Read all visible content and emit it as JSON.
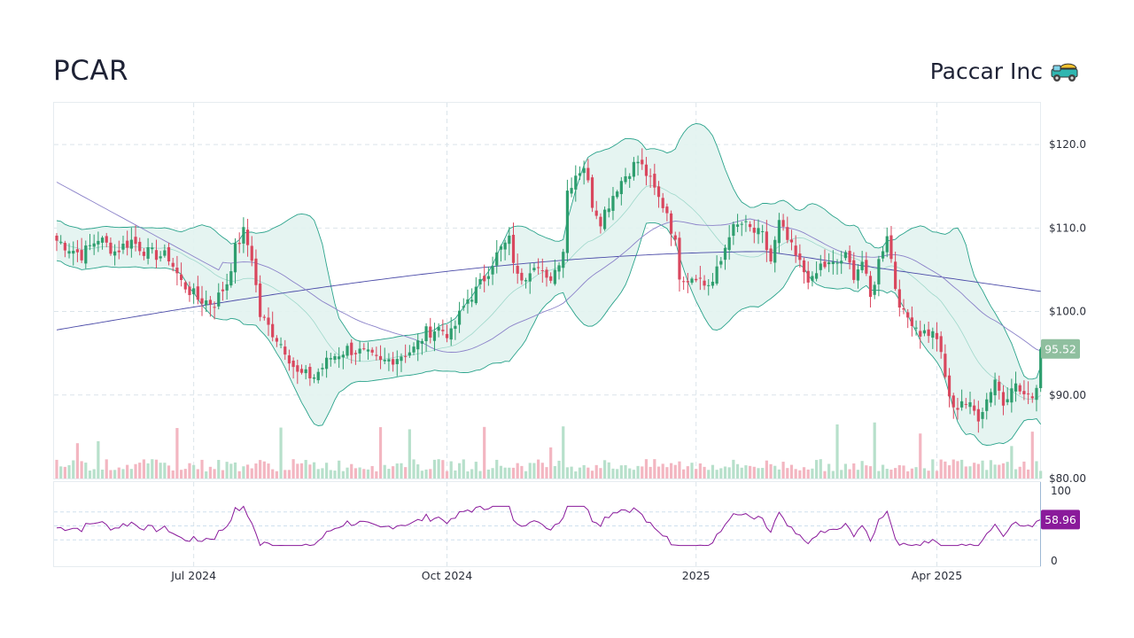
{
  "header": {
    "ticker": "PCAR",
    "company": "Paccar Inc",
    "company_icon": "truck-icon"
  },
  "chart_data": {
    "type": "candlestick",
    "price_ylim": [
      80,
      125
    ],
    "price_ticks": [
      {
        "value": 120,
        "label": "$120.0"
      },
      {
        "value": 110,
        "label": "$110.0"
      },
      {
        "value": 100,
        "label": "$100.0"
      },
      {
        "value": 90,
        "label": "$90.00"
      },
      {
        "value": 80,
        "label": "$80.00"
      }
    ],
    "x_ticks": [
      {
        "i": 33,
        "label": "Jul 2024"
      },
      {
        "i": 94,
        "label": "Oct 2024"
      },
      {
        "i": 154,
        "label": "2025"
      },
      {
        "i": 212,
        "label": "Apr 2025"
      }
    ],
    "close_anchors": [
      [
        0,
        108.5
      ],
      [
        6,
        106.8
      ],
      [
        10,
        108.8
      ],
      [
        14,
        107.2
      ],
      [
        18,
        108.5
      ],
      [
        22,
        107.0
      ],
      [
        27,
        106.5
      ],
      [
        30,
        103.5
      ],
      [
        34,
        101.5
      ],
      [
        38,
        101.0
      ],
      [
        41,
        103.5
      ],
      [
        43,
        107.5
      ],
      [
        45,
        109.5
      ],
      [
        47,
        106.5
      ],
      [
        49,
        99.5
      ],
      [
        52,
        97.5
      ],
      [
        55,
        95.5
      ],
      [
        58,
        92.5
      ],
      [
        62,
        92.2
      ],
      [
        66,
        94.5
      ],
      [
        70,
        95.5
      ],
      [
        74,
        95.0
      ],
      [
        78,
        93.8
      ],
      [
        82,
        94.6
      ],
      [
        86,
        95.5
      ],
      [
        89,
        97.5
      ],
      [
        92,
        98.0
      ],
      [
        95,
        97.2
      ],
      [
        97,
        99.5
      ],
      [
        99,
        101.5
      ],
      [
        101,
        102.5
      ],
      [
        103,
        104.0
      ],
      [
        105,
        106.0
      ],
      [
        107,
        107.5
      ],
      [
        109,
        108.5
      ],
      [
        111,
        104.0
      ],
      [
        113,
        104.5
      ],
      [
        115,
        106.0
      ],
      [
        118,
        103.5
      ],
      [
        120,
        105.0
      ],
      [
        122,
        107.5
      ],
      [
        123,
        114.5
      ],
      [
        125,
        116.5
      ],
      [
        127,
        117.5
      ],
      [
        129,
        113.0
      ],
      [
        131,
        111.0
      ],
      [
        133,
        113.0
      ],
      [
        135,
        115.0
      ],
      [
        138,
        117.0
      ],
      [
        140,
        118.0
      ],
      [
        142,
        116.5
      ],
      [
        145,
        113.5
      ],
      [
        147,
        112.0
      ],
      [
        149,
        108.0
      ],
      [
        150,
        104.5
      ],
      [
        152,
        104.0
      ],
      [
        154,
        104.5
      ],
      [
        156,
        103.2
      ],
      [
        158,
        103.5
      ],
      [
        160,
        106.0
      ],
      [
        162,
        109.5
      ],
      [
        165,
        110.5
      ],
      [
        168,
        109.5
      ],
      [
        170,
        109.0
      ],
      [
        172,
        106.0
      ],
      [
        174,
        110.5
      ],
      [
        176,
        108.5
      ],
      [
        178,
        106.5
      ],
      [
        180,
        104.8
      ],
      [
        182,
        103.5
      ],
      [
        184,
        105.5
      ],
      [
        187,
        105.5
      ],
      [
        190,
        106.5
      ],
      [
        192,
        104.5
      ],
      [
        194,
        106.0
      ],
      [
        196,
        101.5
      ],
      [
        198,
        106.0
      ],
      [
        200,
        109.5
      ],
      [
        202,
        103.0
      ],
      [
        204,
        99.5
      ],
      [
        206,
        99.0
      ],
      [
        208,
        97.5
      ],
      [
        210,
        97.5
      ],
      [
        212,
        97.0
      ],
      [
        214,
        92.0
      ],
      [
        216,
        88.0
      ],
      [
        218,
        89.5
      ],
      [
        220,
        88.5
      ],
      [
        222,
        87.5
      ],
      [
        224,
        89.5
      ],
      [
        226,
        92.0
      ],
      [
        228,
        89.0
      ],
      [
        230,
        91.5
      ],
      [
        232,
        90.5
      ],
      [
        234,
        89.5
      ],
      [
        236,
        91.0
      ],
      [
        237,
        95.52
      ]
    ],
    "last_price": "95.52",
    "rsi_ylim": [
      0,
      100
    ],
    "rsi_ticks": [
      {
        "value": 100,
        "label": "100"
      },
      {
        "value": 0,
        "label": "0"
      }
    ],
    "rsi_bands": [
      70,
      50,
      30
    ],
    "last_rsi": "58.96",
    "colors": {
      "up": "#2e9e6e",
      "down": "#d9475e",
      "up_volume": "#b7e0cb",
      "down_volume": "#f3b6c1",
      "bollinger_line": "#2aa38b",
      "bollinger_fill": "#e2f3f0",
      "ma_long": "#4b4ba8",
      "ma_mid": "#8b82c9",
      "rsi_line": "#8a1a9b",
      "price_badge": "#8fbf9f",
      "rsi_badge": "#8a1a9b"
    }
  }
}
